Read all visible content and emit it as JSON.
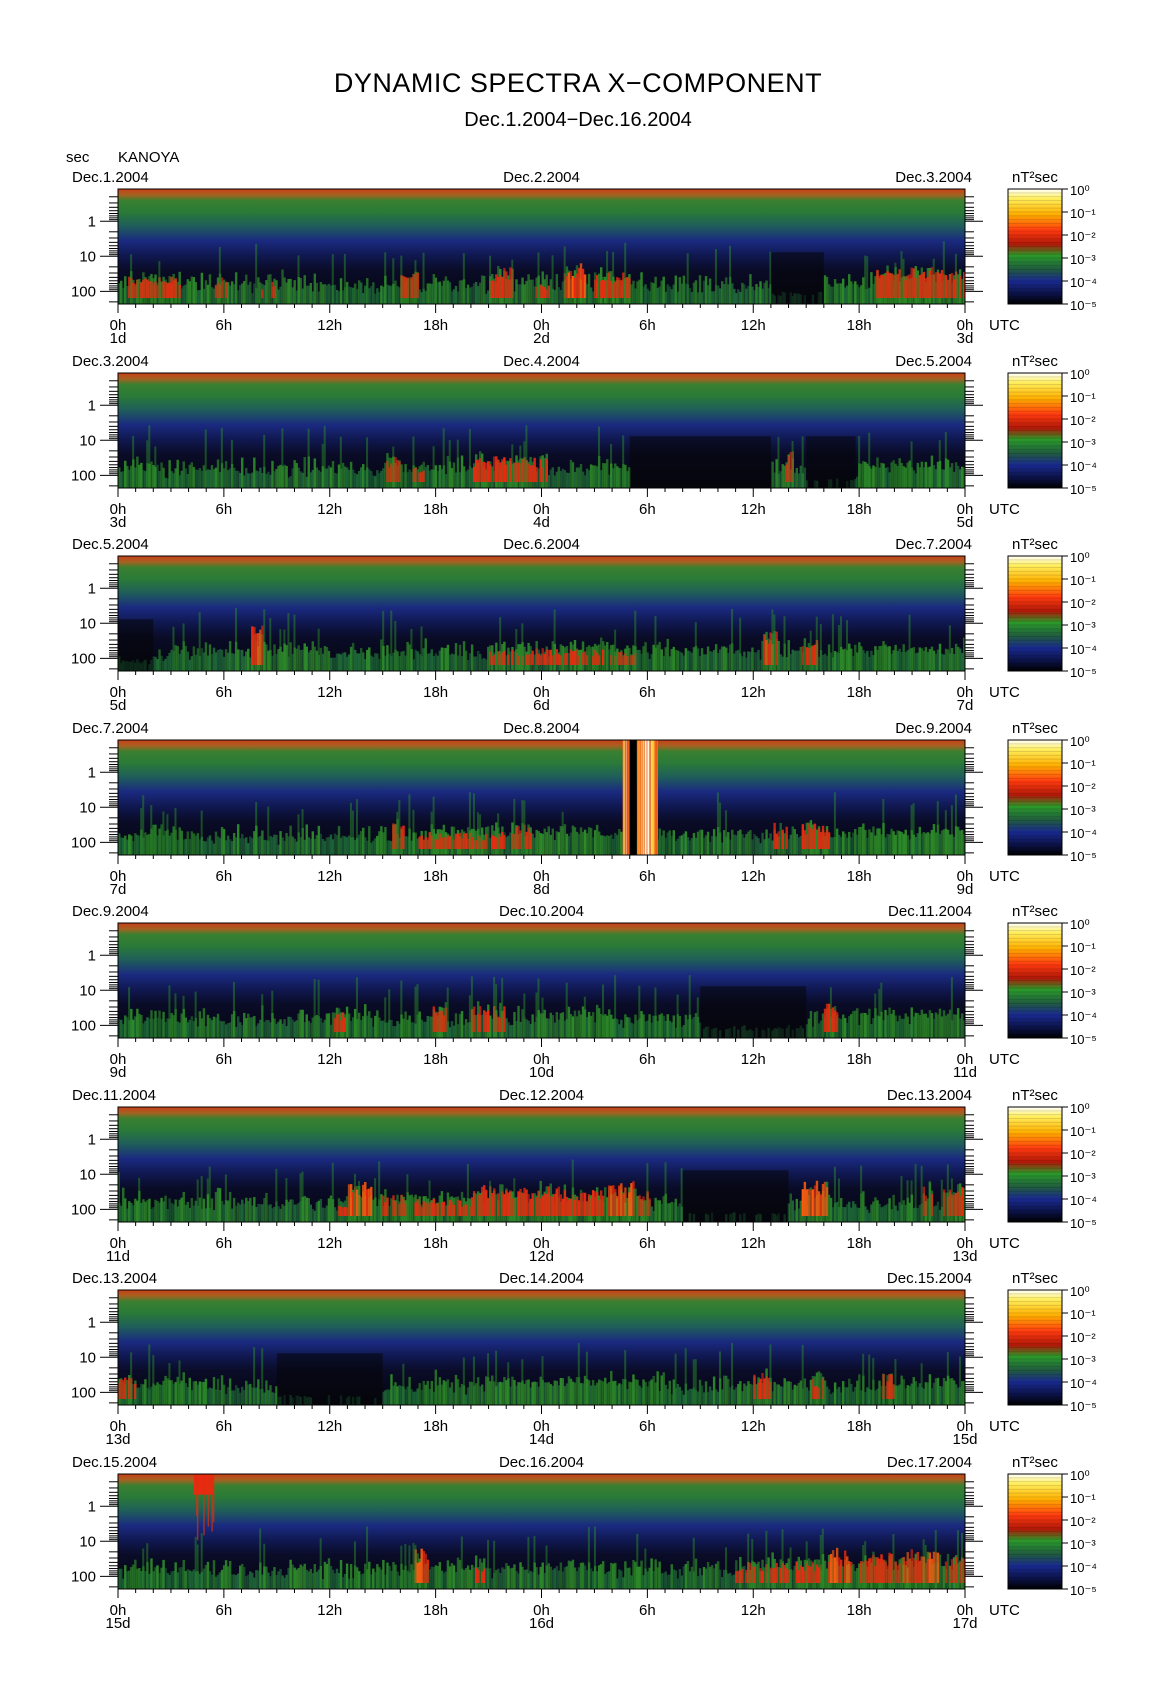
{
  "title": "DYNAMIC SPECTRA X−COMPONENT",
  "subtitle": "Dec.1.2004−Dec.16.2004",
  "y_unit": "sec",
  "station": "KANOYA",
  "colorbar_unit": "nT²sec",
  "utc_label": "UTC",
  "y_tick_labels": [
    "1",
    "10",
    "100"
  ],
  "colorbar_ticks": [
    "10⁰",
    "10⁻¹",
    "10⁻²",
    "10⁻³",
    "10⁻⁴",
    "10⁻⁵"
  ],
  "colors": {
    "low": "#050510",
    "navy": "#1a1a6e",
    "green": "#2f8f2a",
    "red": "#e82a10",
    "orange": "#ff8a00",
    "yellow": "#fff060",
    "top_band": "#c84018"
  },
  "chart_data": {
    "type": "heatmap",
    "title": "DYNAMIC SPECTRA X−COMPONENT",
    "subtitle": "Dec.1.2004−Dec.16.2004",
    "ylabel": "sec",
    "y_scale": "log",
    "y_ticks": [
      1,
      10,
      100
    ],
    "y_reversed": true,
    "x_ticks": [
      "0h",
      "6h",
      "12h",
      "18h",
      "0h",
      "6h",
      "12h",
      "18h",
      "0h"
    ],
    "colorbar": {
      "unit": "nT²sec",
      "scale": "log",
      "min": 1e-05,
      "max": 1,
      "ticks": [
        "10⁰",
        "10⁻¹",
        "10⁻²",
        "10⁻³",
        "10⁻⁴",
        "10⁻⁵"
      ]
    },
    "panels": [
      {
        "start_date": "Dec.1.2004",
        "mid_date": "Dec.2.2004",
        "end_date": "Dec.3.2004",
        "day_labels": [
          "1d",
          "2d",
          "3d"
        ],
        "bursts": [
          [
            0.6,
            3.5,
            0.8
          ],
          [
            3.5,
            4.6,
            0.7
          ],
          [
            5.5,
            6.2,
            0.8
          ],
          [
            8,
            9,
            0.75
          ],
          [
            16,
            17,
            0.85
          ],
          [
            17.5,
            18.7,
            0.7
          ],
          [
            21,
            22.4,
            0.9
          ],
          [
            23.6,
            24.6,
            0.75
          ],
          [
            25.2,
            26.5,
            0.95
          ],
          [
            27,
            29,
            0.85
          ],
          [
            41,
            42.5,
            0.55
          ],
          [
            43,
            48,
            0.9
          ]
        ],
        "quiet": [
          [
            37,
            40,
            0.25
          ]
        ]
      },
      {
        "start_date": "Dec.3.2004",
        "mid_date": "Dec.4.2004",
        "end_date": "Dec.5.2004",
        "day_labels": [
          "3d",
          "4d",
          "5d"
        ],
        "bursts": [
          [
            0.4,
            2.5,
            0.7
          ],
          [
            5,
            6,
            0.6
          ],
          [
            15.2,
            16,
            0.85
          ],
          [
            16.6,
            17.4,
            0.75
          ],
          [
            20,
            24.3,
            0.85
          ],
          [
            37.6,
            38.3,
            0.9
          ],
          [
            42,
            48,
            0.7
          ]
        ],
        "quiet": [
          [
            29,
            37,
            0.15
          ],
          [
            39,
            41.8,
            0.2
          ]
        ]
      },
      {
        "start_date": "Dec.5.2004",
        "mid_date": "Dec.6.2004",
        "end_date": "Dec.7.2004",
        "day_labels": [
          "5d",
          "6d",
          "7d"
        ],
        "bursts": [
          [
            7.5,
            8.2,
            1.0
          ],
          [
            8.2,
            12,
            0.7
          ],
          [
            21,
            29.5,
            0.75
          ],
          [
            36.5,
            37.4,
            0.95
          ],
          [
            38.8,
            39.6,
            0.85
          ],
          [
            40.5,
            48,
            0.65
          ]
        ],
        "quiet": [
          [
            0,
            2,
            0.3
          ]
        ]
      },
      {
        "start_date": "Dec.7.2004",
        "mid_date": "Dec.8.2004",
        "end_date": "Dec.9.2004",
        "day_labels": [
          "7d",
          "8d",
          "9d"
        ],
        "bursts": [
          [
            0.6,
            3.5,
            0.7
          ],
          [
            15.5,
            16.2,
            0.85
          ],
          [
            17,
            22,
            0.75
          ],
          [
            22.3,
            23.4,
            0.85
          ],
          [
            23.8,
            28.6,
            0.7
          ],
          [
            30,
            31.6,
            0.7
          ],
          [
            32.8,
            33.8,
            0.7
          ],
          [
            37.2,
            38,
            0.85
          ],
          [
            38.8,
            40.4,
            0.85
          ],
          [
            40.8,
            48,
            0.7
          ]
        ],
        "quiet": [],
        "saturated": [
          [
            28.6,
            29.0
          ],
          [
            29.4,
            30.6
          ]
        ],
        "gaps": [
          [
            29.0,
            29.4
          ]
        ]
      },
      {
        "start_date": "Dec.9.2004",
        "mid_date": "Dec.10.2004",
        "end_date": "Dec.11.2004",
        "day_labels": [
          "9d",
          "10d",
          "11d"
        ],
        "bursts": [
          [
            0.5,
            3.5,
            0.7
          ],
          [
            12.2,
            13,
            0.8
          ],
          [
            17.8,
            18.8,
            0.85
          ],
          [
            20,
            22,
            0.85
          ],
          [
            23.5,
            28,
            0.7
          ],
          [
            40,
            40.8,
            0.9
          ],
          [
            41.5,
            48,
            0.7
          ]
        ],
        "quiet": [
          [
            33,
            39,
            0.25
          ]
        ]
      },
      {
        "start_date": "Dec.11.2004",
        "mid_date": "Dec.12.2004",
        "end_date": "Dec.13.2004",
        "day_labels": [
          "11d",
          "12d",
          "13d"
        ],
        "bursts": [
          [
            0.4,
            4,
            0.65
          ],
          [
            12.5,
            13,
            0.75
          ],
          [
            13,
            14.4,
            0.95
          ],
          [
            15,
            17,
            0.8
          ],
          [
            17,
            20,
            0.75
          ],
          [
            20,
            25,
            0.9
          ],
          [
            25,
            27.8,
            0.85
          ],
          [
            27.8,
            29.2,
            0.95
          ],
          [
            29.2,
            30.2,
            0.85
          ],
          [
            38.8,
            40.2,
            0.95
          ],
          [
            45.6,
            46.2,
            0.9
          ],
          [
            46.8,
            48,
            0.9
          ]
        ],
        "quiet": [
          [
            32,
            38,
            0.2
          ]
        ]
      },
      {
        "start_date": "Dec.13.2004",
        "mid_date": "Dec.14.2004",
        "end_date": "Dec.15.2004",
        "day_labels": [
          "13d",
          "14d",
          "15d"
        ],
        "bursts": [
          [
            0,
            1,
            0.8
          ],
          [
            1,
            4.5,
            0.65
          ],
          [
            7,
            8,
            0.6
          ],
          [
            20,
            30,
            0.7
          ],
          [
            36,
            37,
            0.85
          ],
          [
            39.2,
            40,
            0.8
          ],
          [
            43.2,
            44,
            0.85
          ],
          [
            44,
            48,
            0.7
          ]
        ],
        "quiet": [
          [
            9,
            15,
            0.2
          ]
        ]
      },
      {
        "start_date": "Dec.15.2004",
        "mid_date": "Dec.16.2004",
        "end_date": "Dec.17.2004",
        "day_labels": [
          "15d",
          "16d",
          "17d"
        ],
        "bursts": [
          [
            0.4,
            4,
            0.6
          ],
          [
            16.8,
            17.6,
            0.95
          ],
          [
            17.6,
            20,
            0.7
          ],
          [
            20.2,
            20.8,
            0.8
          ],
          [
            22,
            28,
            0.7
          ],
          [
            35,
            40,
            0.8
          ],
          [
            40.2,
            41.6,
            0.95
          ],
          [
            42,
            44.3,
            0.9
          ],
          [
            44.5,
            46.6,
            0.95
          ],
          [
            46.6,
            48,
            0.85
          ]
        ],
        "quiet": [],
        "top_bursts": [
          [
            4.3,
            5.4
          ]
        ]
      }
    ]
  }
}
